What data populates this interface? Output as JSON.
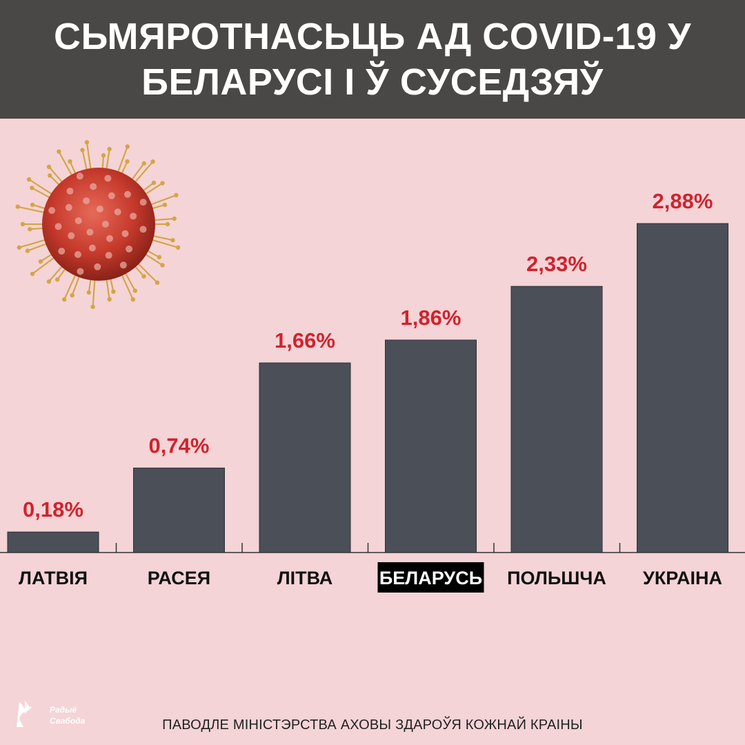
{
  "header": {
    "title_line1": "СЬМЯРОТНАСЬЦЬ АД COVID-19 У",
    "title_line2": "БЕЛАРУСІ І Ў СУСЕДЗЯЎ"
  },
  "chart_data": {
    "type": "bar",
    "title": "СЬМЯРОТНАСЬЦЬ АД COVID-19 У БЕЛАРУСІ І Ў СУСЕДЗЯЎ",
    "categories": [
      "ЛАТВІЯ",
      "РАСЕЯ",
      "ЛІТВА",
      "БЕЛАРУСЬ",
      "ПОЛЬШЧА",
      "УКРАІНА"
    ],
    "values": [
      0.18,
      0.74,
      1.66,
      1.86,
      2.33,
      2.88
    ],
    "value_labels": [
      "0,18%",
      "0,74%",
      "1,66%",
      "1,86%",
      "2,33%",
      "2,88%"
    ],
    "highlight_category": "БЕЛАРУСЬ",
    "ylim": [
      0,
      3.17
    ],
    "grid": false,
    "colors": {
      "bar": "#4a4f58",
      "bar_stroke": "#2e3138",
      "value_label": "#d0232e",
      "axis": "#333333",
      "category_label": "#111111",
      "highlight_bg": "#000000",
      "highlight_text": "#ffffff"
    }
  },
  "footer": {
    "source": "ПАВОДЛЕ МІНІСТЭРСТВА АХОВЫ ЗДАРОЎЯ КОЖНАЙ КРАІНЫ",
    "logo_line1": "Радыё",
    "logo_line2": "Свабода"
  },
  "decor": {
    "virus_icon": "coronavirus-icon",
    "virus_color": "#c63a2c",
    "spike_color": "#d4a548"
  }
}
